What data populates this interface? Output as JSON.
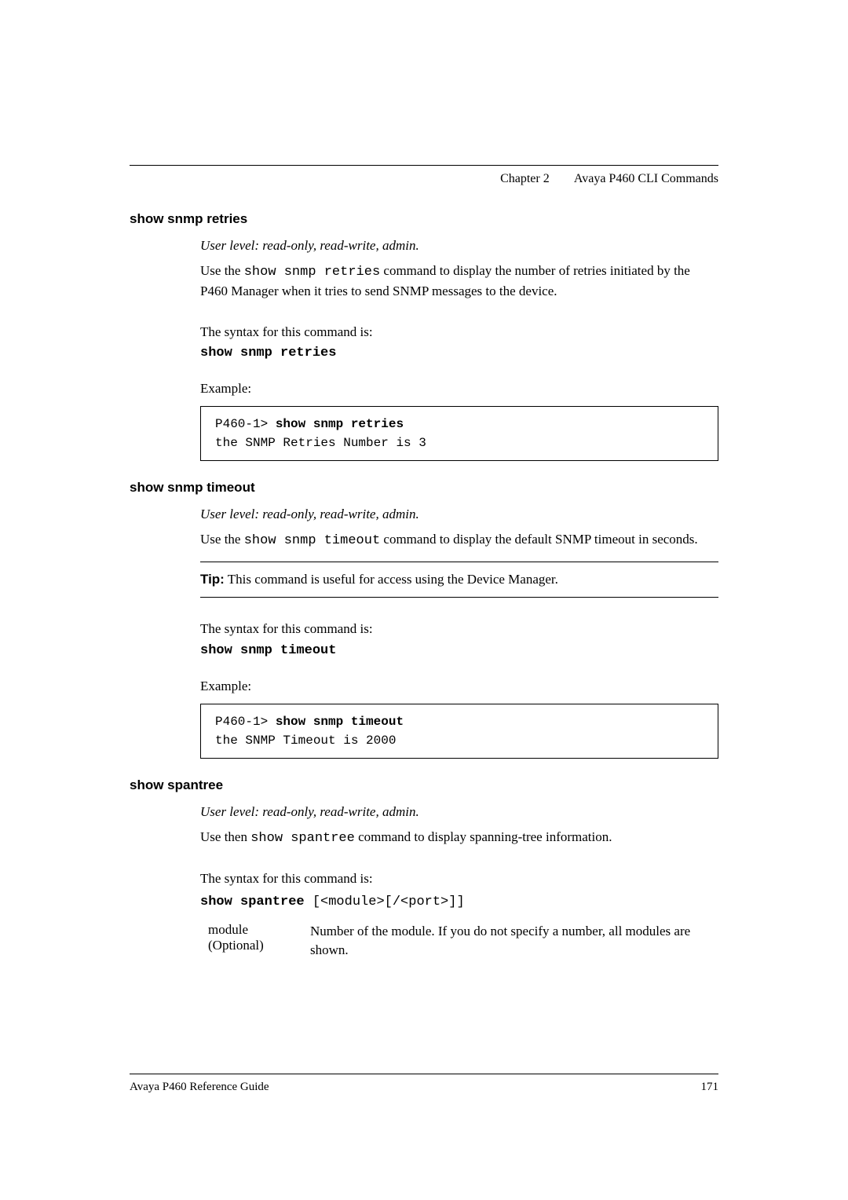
{
  "header": {
    "chapter": "Chapter 2",
    "title": "Avaya P460 CLI Commands"
  },
  "section1": {
    "title": "show snmp retries",
    "user_level": "User level: read-only, read-write, admin.",
    "desc_prefix": "Use the ",
    "cmd": "show snmp retries",
    "desc_suffix": " command to display the number of retries initiated by the P460 Manager when it tries to send SNMP messages to the device.",
    "syntax_intro": "The syntax for this command is:",
    "syntax_cmd": "show snmp retries",
    "example_label": "Example:",
    "example_prompt": "P460-1> ",
    "example_cmd": "show snmp retries",
    "example_output": "the SNMP Retries Number is 3"
  },
  "section2": {
    "title": "show snmp timeout",
    "user_level": "User level: read-only, read-write, admin.",
    "desc_prefix": "Use the ",
    "cmd": "show snmp timeout",
    "desc_suffix": " command to display the default SNMP timeout in seconds.",
    "tip_label": "Tip:",
    "tip_text": "  This command is useful for access using the Device Manager.",
    "syntax_intro": "The syntax for this command is:",
    "syntax_cmd": "show snmp timeout",
    "example_label": "Example:",
    "example_prompt": "P460-1> ",
    "example_cmd": "show snmp timeout",
    "example_output": "the SNMP Timeout is 2000"
  },
  "section3": {
    "title": "show spantree",
    "user_level": "User level: read-only, read-write, admin.",
    "desc_prefix": "Use then ",
    "cmd": "show spantree",
    "desc_suffix": " command to display spanning-tree information.",
    "syntax_intro": "The syntax for this command is:",
    "syntax_cmd": "show spantree",
    "syntax_args": " [<module>[/<port>]]",
    "param1_name": "module",
    "param1_optional": "(Optional)",
    "param1_desc": "Number of the module. If you do not specify a number, all modules are shown."
  },
  "footer": {
    "guide": "Avaya P460 Reference Guide",
    "page": "171"
  }
}
